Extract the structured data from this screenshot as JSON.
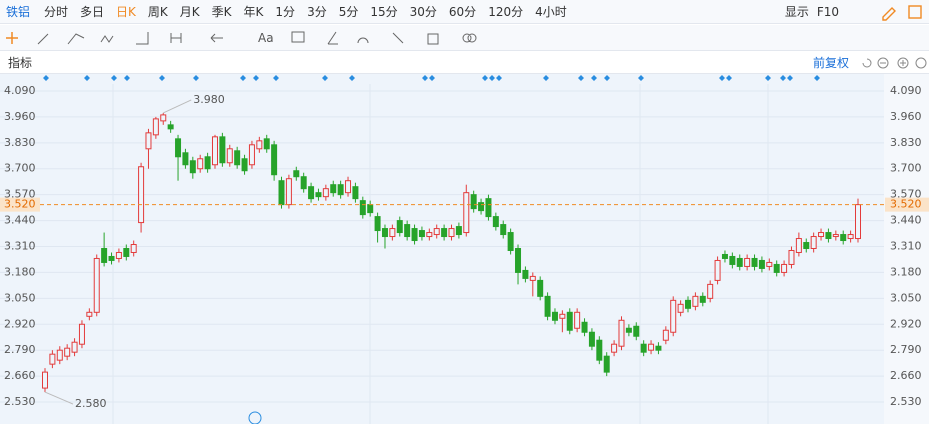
{
  "toolbar": {
    "symbol": "铁铝",
    "periods": [
      "分时",
      "多日",
      "日K",
      "周K",
      "月K",
      "季K",
      "年K",
      "1分",
      "3分",
      "5分",
      "15分",
      "30分",
      "60分",
      "120分",
      "4小时"
    ],
    "active": "日K",
    "display": "显示",
    "f10": "F10",
    "font_tool": "Aa"
  },
  "indicator_bar": {
    "label": "指标",
    "adjust": "前复权"
  },
  "chart_data": {
    "type": "candlestick",
    "open": [
      2.6,
      2.72,
      2.74,
      2.76,
      2.78,
      2.82,
      2.96,
      2.98,
      3.3,
      3.26,
      3.25,
      3.3,
      3.28,
      3.43,
      3.8,
      3.87,
      3.94,
      3.92,
      3.85,
      3.78,
      3.74,
      3.7,
      3.76,
      3.72,
      3.86,
      3.73,
      3.79,
      3.75,
      3.72,
      3.8,
      3.85,
      3.82,
      3.64,
      3.52,
      3.69,
      3.66,
      3.61,
      3.58,
      3.56,
      3.62,
      3.62,
      3.58,
      3.61,
      3.54,
      3.52,
      3.46,
      3.4,
      3.36,
      3.44,
      3.42,
      3.4,
      3.39,
      3.36,
      3.37,
      3.4,
      3.36,
      3.41,
      3.38,
      3.57,
      3.53,
      3.55,
      3.46,
      3.42,
      3.38,
      3.3,
      3.19,
      3.14,
      3.14,
      3.06,
      2.98,
      2.95,
      2.98,
      2.9,
      2.93,
      2.88,
      2.84,
      2.76,
      2.78,
      2.81,
      2.9,
      2.91,
      2.82,
      2.79,
      2.81,
      2.84,
      2.88,
      2.98,
      3.04,
      3.01,
      3.06,
      3.05,
      3.14,
      3.27,
      3.26,
      3.25,
      3.21,
      3.25,
      3.24,
      3.21,
      3.22,
      3.18,
      3.22,
      3.28,
      3.33,
      3.3,
      3.36,
      3.38,
      3.36,
      3.37,
      3.35,
      3.35
    ],
    "close": [
      2.68,
      2.77,
      2.79,
      2.8,
      2.83,
      2.92,
      2.98,
      3.25,
      3.23,
      3.24,
      3.28,
      3.26,
      3.32,
      3.71,
      3.88,
      3.95,
      3.97,
      3.9,
      3.76,
      3.72,
      3.68,
      3.75,
      3.7,
      3.86,
      3.73,
      3.8,
      3.72,
      3.69,
      3.82,
      3.84,
      3.8,
      3.67,
      3.52,
      3.65,
      3.66,
      3.6,
      3.55,
      3.56,
      3.6,
      3.58,
      3.57,
      3.64,
      3.55,
      3.47,
      3.48,
      3.39,
      3.36,
      3.4,
      3.38,
      3.36,
      3.34,
      3.36,
      3.38,
      3.4,
      3.36,
      3.4,
      3.37,
      3.58,
      3.5,
      3.49,
      3.46,
      3.41,
      3.37,
      3.29,
      3.18,
      3.15,
      3.16,
      3.06,
      2.96,
      2.94,
      2.97,
      2.89,
      2.98,
      2.88,
      2.81,
      2.74,
      2.68,
      2.82,
      2.94,
      2.88,
      2.86,
      2.78,
      2.82,
      2.79,
      2.89,
      3.04,
      3.02,
      3.0,
      3.06,
      3.03,
      3.12,
      3.24,
      3.25,
      3.22,
      3.21,
      3.25,
      3.21,
      3.2,
      3.23,
      3.18,
      3.22,
      3.29,
      3.35,
      3.3,
      3.36,
      3.38,
      3.35,
      3.37,
      3.34,
      3.37,
      3.52
    ],
    "high": [
      2.7,
      2.79,
      2.81,
      2.82,
      2.85,
      2.94,
      3.0,
      3.27,
      3.38,
      3.28,
      3.3,
      3.32,
      3.34,
      3.73,
      3.9,
      3.96,
      3.98,
      3.94,
      3.87,
      3.8,
      3.76,
      3.77,
      3.78,
      3.87,
      3.88,
      3.82,
      3.81,
      3.77,
      3.84,
      3.86,
      3.87,
      3.84,
      3.66,
      3.67,
      3.71,
      3.68,
      3.63,
      3.6,
      3.62,
      3.64,
      3.64,
      3.66,
      3.63,
      3.56,
      3.54,
      3.48,
      3.42,
      3.42,
      3.46,
      3.44,
      3.42,
      3.41,
      3.4,
      3.42,
      3.42,
      3.42,
      3.43,
      3.62,
      3.59,
      3.55,
      3.57,
      3.48,
      3.44,
      3.4,
      3.32,
      3.21,
      3.18,
      3.16,
      3.08,
      3.0,
      2.99,
      3.0,
      3.0,
      2.95,
      2.9,
      2.86,
      2.78,
      2.84,
      2.96,
      2.92,
      2.93,
      2.84,
      2.84,
      2.83,
      2.91,
      3.06,
      3.04,
      3.06,
      3.08,
      3.08,
      3.14,
      3.26,
      3.29,
      3.28,
      3.27,
      3.27,
      3.27,
      3.26,
      3.25,
      3.24,
      3.24,
      3.31,
      3.38,
      3.35,
      3.38,
      3.4,
      3.4,
      3.39,
      3.39,
      3.39,
      3.55
    ],
    "low": [
      2.58,
      2.7,
      2.72,
      2.74,
      2.76,
      2.8,
      2.94,
      2.96,
      3.21,
      3.22,
      3.23,
      3.24,
      3.26,
      3.38,
      3.7,
      3.85,
      3.92,
      3.88,
      3.64,
      3.7,
      3.65,
      3.68,
      3.68,
      3.7,
      3.71,
      3.71,
      3.7,
      3.67,
      3.7,
      3.78,
      3.78,
      3.64,
      3.5,
      3.5,
      3.64,
      3.58,
      3.53,
      3.54,
      3.54,
      3.56,
      3.55,
      3.56,
      3.53,
      3.45,
      3.46,
      3.33,
      3.3,
      3.34,
      3.36,
      3.34,
      3.32,
      3.34,
      3.34,
      3.35,
      3.34,
      3.34,
      3.35,
      3.36,
      3.48,
      3.47,
      3.44,
      3.39,
      3.35,
      3.27,
      3.12,
      3.13,
      3.06,
      3.04,
      2.94,
      2.92,
      2.88,
      2.87,
      2.88,
      2.86,
      2.79,
      2.72,
      2.66,
      2.76,
      2.79,
      2.86,
      2.84,
      2.76,
      2.77,
      2.77,
      2.82,
      2.86,
      2.96,
      2.98,
      2.99,
      3.01,
      3.03,
      3.12,
      3.23,
      3.2,
      3.19,
      3.19,
      3.19,
      3.18,
      3.19,
      3.16,
      3.16,
      3.2,
      3.26,
      3.28,
      3.28,
      3.34,
      3.33,
      3.34,
      3.32,
      3.33,
      3.33
    ],
    "up_color": "#e33b3b",
    "down_color": "#27a32a",
    "ylim": [
      2.465,
      4.145
    ],
    "yticks": [
      {
        "value": 2.53,
        "label": "2.530"
      },
      {
        "value": 2.66,
        "label": "2.660"
      },
      {
        "value": 2.79,
        "label": "2.790"
      },
      {
        "value": 2.92,
        "label": "2.920"
      },
      {
        "value": 3.05,
        "label": "3.050"
      },
      {
        "value": 3.18,
        "label": "3.180"
      },
      {
        "value": 3.31,
        "label": "3.310"
      },
      {
        "value": 3.44,
        "label": "3.440"
      },
      {
        "value": 3.57,
        "label": "3.570"
      },
      {
        "value": 3.7,
        "label": "3.700"
      },
      {
        "value": 3.83,
        "label": "3.830"
      },
      {
        "value": 3.96,
        "label": "3.960"
      },
      {
        "value": 4.09,
        "label": "4.090"
      }
    ],
    "grid": true,
    "last_price": {
      "value": 3.52,
      "label": "3.520"
    },
    "max_label": {
      "value": 3.98,
      "label": "3.980"
    },
    "min_label": {
      "value": 2.58,
      "label": "2.580"
    }
  }
}
